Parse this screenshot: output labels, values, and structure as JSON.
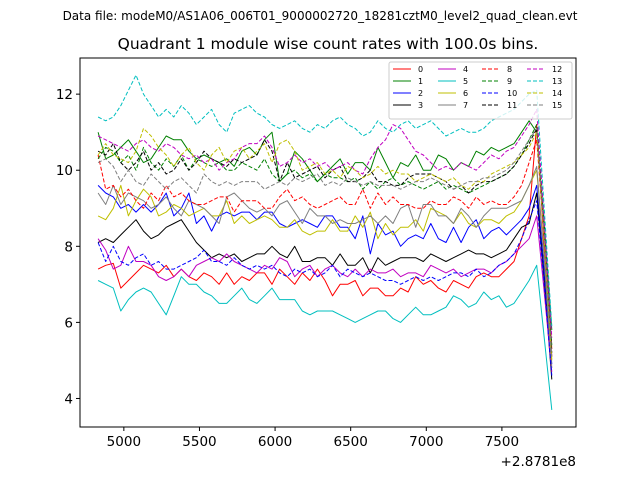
{
  "figure": {
    "suptitle": "Data file: modeM0/AS1A06_006T01_9000002720_18281cztM0_level2_quad_clean.evt",
    "title": "Quadrant 1 module wise count rates with 100.0s bins."
  },
  "chart_data": {
    "type": "line",
    "title": "Quadrant 1 module wise count rates with 100.0s bins.",
    "xlabel": "",
    "ylabel": "",
    "x_offset_label": "+2.8781e8",
    "xlim": [
      4710,
      7990
    ],
    "ylim": [
      3.25,
      12.95
    ],
    "xticks": [
      5000,
      5500,
      6000,
      6500,
      7000,
      7500
    ],
    "yticks": [
      4,
      6,
      8,
      10,
      12
    ],
    "grid": false,
    "legend": {
      "placement": "top-right",
      "columns": 4
    },
    "x": [
      4830,
      4880,
      4930,
      4980,
      5030,
      5080,
      5130,
      5180,
      5230,
      5280,
      5330,
      5380,
      5430,
      5480,
      5530,
      5580,
      5630,
      5680,
      5730,
      5780,
      5830,
      5880,
      5930,
      5980,
      6030,
      6080,
      6130,
      6180,
      6230,
      6280,
      6330,
      6380,
      6430,
      6480,
      6530,
      6580,
      6630,
      6680,
      6730,
      6780,
      6830,
      6880,
      6930,
      6980,
      7030,
      7080,
      7130,
      7180,
      7230,
      7280,
      7330,
      7380,
      7430,
      7480,
      7530,
      7580,
      7630,
      7680,
      7730,
      7780,
      7830
    ],
    "series": [
      {
        "name": "0",
        "color": "#ff0000",
        "dash": false,
        "values": [
          7.4,
          7.5,
          7.55,
          6.9,
          7.1,
          7.3,
          7.5,
          7.4,
          7.3,
          7.5,
          7.2,
          7.4,
          7.2,
          7.1,
          7.3,
          7.2,
          7.0,
          7.3,
          7.0,
          7.2,
          7.1,
          7.3,
          7.3,
          7.0,
          7.4,
          7.2,
          7.0,
          7.3,
          7.1,
          7.4,
          7.1,
          6.7,
          7.0,
          7.0,
          7.1,
          6.7,
          6.9,
          6.9,
          6.7,
          6.7,
          6.9,
          6.8,
          7.2,
          7.0,
          7.1,
          6.9,
          6.8,
          7.1,
          7.0,
          6.9,
          7.2,
          7.3,
          7.2,
          7.2,
          7.4,
          7.6,
          8.2,
          8.8,
          11.2,
          8.0,
          5.1
        ]
      },
      {
        "name": "1",
        "color": "#008000",
        "dash": false,
        "values": [
          11.0,
          10.3,
          10.4,
          10.6,
          10.8,
          10.5,
          10.2,
          10.3,
          10.6,
          10.9,
          10.8,
          10.8,
          10.5,
          10.3,
          10.4,
          10.3,
          10.2,
          10.3,
          10.1,
          10.5,
          10.6,
          10.4,
          10.8,
          11.0,
          9.7,
          9.9,
          10.5,
          10.3,
          10.0,
          9.7,
          9.9,
          10.1,
          10.3,
          9.9,
          10.2,
          10.2,
          10.0,
          10.6,
          10.2,
          9.8,
          10.2,
          10.1,
          10.4,
          10.0,
          10.0,
          10.4,
          10.3,
          10.0,
          10.2,
          10.1,
          10.5,
          10.4,
          10.6,
          10.5,
          10.6,
          10.7,
          11.0,
          11.3,
          11.0,
          8.6,
          5.8
        ]
      },
      {
        "name": "2",
        "color": "#0000ff",
        "dash": false,
        "values": [
          9.6,
          9.4,
          9.3,
          9.0,
          9.1,
          8.9,
          9.1,
          8.9,
          9.1,
          9.4,
          8.8,
          9.0,
          9.4,
          8.6,
          8.8,
          8.4,
          8.8,
          8.9,
          8.8,
          8.9,
          8.9,
          8.7,
          8.9,
          8.9,
          8.6,
          8.5,
          8.6,
          8.7,
          8.6,
          8.5,
          8.8,
          8.8,
          8.5,
          8.5,
          8.2,
          8.8,
          7.8,
          8.6,
          8.3,
          8.4,
          8.0,
          8.2,
          8.3,
          8.2,
          8.6,
          8.2,
          8.1,
          8.5,
          8.1,
          8.5,
          8.7,
          8.2,
          8.4,
          8.5,
          8.3,
          8.5,
          8.7,
          9.0,
          9.6,
          7.4,
          4.9
        ]
      },
      {
        "name": "3",
        "color": "#000000",
        "dash": false,
        "values": [
          8.1,
          8.2,
          8.1,
          8.3,
          8.5,
          8.7,
          8.4,
          8.2,
          8.3,
          8.5,
          8.6,
          8.7,
          8.4,
          8.1,
          7.9,
          7.7,
          7.8,
          7.7,
          7.8,
          7.6,
          7.7,
          7.8,
          7.8,
          8.0,
          7.8,
          7.7,
          8.0,
          7.6,
          7.6,
          7.7,
          7.7,
          7.5,
          7.8,
          7.5,
          7.5,
          7.7,
          7.3,
          7.7,
          7.5,
          7.6,
          7.7,
          7.7,
          7.7,
          7.6,
          7.8,
          7.7,
          7.6,
          7.7,
          7.8,
          7.9,
          7.8,
          7.8,
          7.7,
          7.8,
          7.9,
          8.2,
          8.5,
          8.6,
          9.4,
          7.1,
          4.5
        ]
      },
      {
        "name": "4",
        "color": "#c000c0",
        "dash": false,
        "values": [
          8.2,
          7.9,
          7.4,
          7.5,
          8.0,
          7.6,
          7.6,
          7.5,
          7.2,
          7.1,
          7.2,
          7.4,
          7.2,
          7.5,
          7.6,
          7.7,
          7.6,
          7.8,
          7.6,
          7.5,
          7.4,
          7.3,
          7.5,
          7.4,
          7.7,
          7.6,
          7.2,
          7.4,
          7.5,
          7.2,
          7.4,
          7.5,
          7.3,
          7.2,
          7.4,
          7.2,
          7.4,
          7.3,
          7.3,
          7.4,
          7.2,
          7.3,
          7.3,
          7.2,
          7.5,
          7.4,
          7.3,
          7.4,
          7.2,
          7.3,
          7.4,
          7.4,
          7.3,
          7.5,
          7.6,
          7.8,
          8.0,
          8.2,
          8.8,
          6.8,
          4.7
        ]
      },
      {
        "name": "5",
        "color": "#00bfbf",
        "dash": false,
        "values": [
          7.1,
          7.0,
          6.9,
          6.3,
          6.6,
          6.8,
          6.9,
          6.8,
          6.5,
          6.2,
          6.7,
          7.2,
          7.0,
          7.0,
          6.8,
          6.7,
          6.5,
          6.5,
          6.7,
          6.9,
          6.6,
          6.5,
          6.7,
          6.9,
          6.6,
          6.6,
          6.6,
          6.3,
          6.2,
          6.3,
          6.3,
          6.3,
          6.2,
          6.1,
          6.0,
          6.1,
          6.2,
          6.3,
          6.3,
          6.1,
          6.0,
          6.2,
          6.4,
          6.2,
          6.2,
          6.3,
          6.4,
          6.7,
          6.6,
          6.4,
          6.5,
          6.8,
          6.6,
          6.7,
          6.4,
          6.5,
          6.8,
          7.1,
          7.5,
          5.6,
          3.7
        ]
      },
      {
        "name": "6",
        "color": "#bfbf00",
        "dash": false,
        "values": [
          8.8,
          8.7,
          9.0,
          9.6,
          8.8,
          9.2,
          9.5,
          9.3,
          8.8,
          8.9,
          9.1,
          9.0,
          8.8,
          8.9,
          9.0,
          8.8,
          8.8,
          9.2,
          8.6,
          8.8,
          8.6,
          8.7,
          8.8,
          8.7,
          8.5,
          8.5,
          8.7,
          8.4,
          8.3,
          8.4,
          8.4,
          8.7,
          8.4,
          8.4,
          8.8,
          8.5,
          8.9,
          8.2,
          8.6,
          8.3,
          8.5,
          8.5,
          8.7,
          8.4,
          9.0,
          8.9,
          8.8,
          8.6,
          8.9,
          8.6,
          8.5,
          8.7,
          8.7,
          8.6,
          8.8,
          8.9,
          9.2,
          9.6,
          10.0,
          7.7,
          5.0
        ]
      },
      {
        "name": "7",
        "color": "#7f7f7f",
        "dash": false,
        "values": [
          9.4,
          9.1,
          9.6,
          9.1,
          9.4,
          9.3,
          9.2,
          9.0,
          9.1,
          9.3,
          9.0,
          8.8,
          9.2,
          9.1,
          9.0,
          8.8,
          8.6,
          9.3,
          9.4,
          9.2,
          9.0,
          8.9,
          9.0,
          8.8,
          9.1,
          9.2,
          8.9,
          8.6,
          9.0,
          8.8,
          8.8,
          8.6,
          8.7,
          8.6,
          8.6,
          8.7,
          8.8,
          8.6,
          8.8,
          8.6,
          9.0,
          9.1,
          8.5,
          9.1,
          9.1,
          8.8,
          8.8,
          8.6,
          9.0,
          8.8,
          8.5,
          8.8,
          9.0,
          9.0,
          9.0,
          9.1,
          9.2,
          9.6,
          10.1,
          7.7,
          4.8
        ]
      },
      {
        "name": "8",
        "color": "#ff0000",
        "dash": true,
        "values": [
          10.4,
          9.5,
          9.6,
          9.3,
          9.5,
          9.2,
          9.0,
          9.4,
          9.2,
          9.6,
          9.3,
          9.4,
          9.2,
          9.1,
          9.1,
          9.2,
          9.3,
          9.3,
          8.9,
          9.2,
          9.2,
          9.2,
          9.0,
          9.0,
          9.3,
          9.5,
          9.2,
          9.3,
          9.1,
          9.0,
          9.1,
          9.2,
          9.3,
          9.1,
          9.1,
          9.5,
          9.0,
          9.4,
          9.1,
          9.3,
          9.1,
          9.1,
          9.0,
          9.0,
          9.2,
          9.1,
          9.1,
          9.3,
          9.2,
          9.0,
          9.3,
          9.1,
          9.2,
          9.1,
          9.1,
          9.3,
          9.6,
          10.2,
          10.8,
          8.2,
          5.3
        ]
      },
      {
        "name": "9",
        "color": "#008000",
        "dash": true,
        "values": [
          10.3,
          10.6,
          10.5,
          10.2,
          10.4,
          10.0,
          10.6,
          10.2,
          10.0,
          10.3,
          10.1,
          10.4,
          10.0,
          10.3,
          10.2,
          10.1,
          10.2,
          10.0,
          10.0,
          10.2,
          10.1,
          10.0,
          10.3,
          9.9,
          9.7,
          9.9,
          10.0,
          9.8,
          9.9,
          9.7,
          9.9,
          9.8,
          9.8,
          9.7,
          9.8,
          9.5,
          9.7,
          9.5,
          9.7,
          9.8,
          9.6,
          9.7,
          9.6,
          9.5,
          9.6,
          9.7,
          9.5,
          9.6,
          9.5,
          9.4,
          9.5,
          9.6,
          9.7,
          9.8,
          9.9,
          10.1,
          10.4,
          10.8,
          11.2,
          8.4,
          5.4
        ]
      },
      {
        "name": "10",
        "color": "#0000ff",
        "dash": true,
        "values": [
          8.1,
          7.6,
          8.0,
          7.6,
          7.5,
          7.7,
          7.8,
          7.5,
          7.6,
          7.4,
          7.4,
          7.5,
          7.6,
          7.7,
          7.9,
          7.6,
          7.6,
          7.5,
          7.7,
          7.5,
          7.4,
          7.5,
          7.4,
          7.5,
          7.3,
          7.2,
          7.4,
          7.3,
          7.4,
          7.2,
          7.3,
          7.5,
          7.2,
          7.4,
          7.3,
          7.2,
          7.3,
          7.2,
          7.1,
          7.1,
          7.0,
          7.1,
          7.2,
          7.1,
          7.2,
          7.1,
          7.2,
          7.3,
          7.3,
          7.2,
          7.4,
          7.2,
          7.3,
          7.5,
          7.6,
          7.8,
          8.2,
          8.7,
          9.2,
          7.0,
          4.6
        ]
      },
      {
        "name": "11",
        "color": "#000000",
        "dash": true,
        "values": [
          10.5,
          10.4,
          10.7,
          10.2,
          10.0,
          10.2,
          10.5,
          10.0,
          10.2,
          9.9,
          10.0,
          10.3,
          10.0,
          10.2,
          10.5,
          10.3,
          10.2,
          10.1,
          10.3,
          10.2,
          10.3,
          10.4,
          10.8,
          10.5,
          9.7,
          10.2,
          9.8,
          9.9,
          10.0,
          10.1,
          9.8,
          10.0,
          10.1,
          9.7,
          9.7,
          9.8,
          10.0,
          9.7,
          9.7,
          9.6,
          9.6,
          9.8,
          9.9,
          9.9,
          9.9,
          9.8,
          9.7,
          9.5,
          9.6,
          9.4,
          9.6,
          9.7,
          9.7,
          9.8,
          9.9,
          10.1,
          10.4,
          10.7,
          11.1,
          8.3,
          5.2
        ]
      },
      {
        "name": "12",
        "color": "#c000c0",
        "dash": true,
        "values": [
          10.9,
          10.8,
          10.7,
          10.6,
          10.5,
          10.7,
          10.8,
          10.6,
          10.5,
          10.7,
          10.6,
          10.4,
          10.3,
          10.4,
          10.2,
          10.3,
          10.0,
          10.2,
          10.3,
          10.6,
          10.7,
          10.7,
          10.9,
          10.6,
          10.1,
          10.2,
          10.4,
          10.2,
          10.3,
          10.1,
          10.2,
          10.0,
          10.1,
          10.2,
          10.0,
          9.9,
          10.3,
          10.6,
          10.8,
          11.2,
          11.1,
          10.8,
          10.5,
          10.4,
          10.2,
          10.0,
          10.1,
          10.0,
          10.2,
          10.1,
          10.0,
          10.2,
          10.4,
          10.3,
          10.5,
          10.6,
          10.9,
          11.2,
          11.6,
          8.7,
          5.6
        ]
      },
      {
        "name": "13",
        "color": "#00bfbf",
        "dash": true,
        "values": [
          11.4,
          11.3,
          11.4,
          11.7,
          12.1,
          12.5,
          12.0,
          11.7,
          11.4,
          11.6,
          11.4,
          11.7,
          11.5,
          11.2,
          11.4,
          11.6,
          11.2,
          11.0,
          11.5,
          11.6,
          11.7,
          11.5,
          11.4,
          11.2,
          11.1,
          11.2,
          11.3,
          11.1,
          11.0,
          11.2,
          11.1,
          11.3,
          11.4,
          11.2,
          11.1,
          10.9,
          11.0,
          11.3,
          11.1,
          11.0,
          11.2,
          11.3,
          11.1,
          11.2,
          11.3,
          11.1,
          10.9,
          11.0,
          11.1,
          11.0,
          11.0,
          11.1,
          11.3,
          11.4,
          11.5,
          11.6,
          11.8,
          12.0,
          12.1,
          9.0,
          5.9
        ]
      },
      {
        "name": "14",
        "color": "#bfbf00",
        "dash": true,
        "values": [
          10.4,
          10.7,
          10.4,
          10.3,
          10.2,
          10.5,
          11.1,
          10.9,
          10.6,
          10.4,
          10.1,
          10.4,
          10.6,
          10.2,
          10.0,
          10.4,
          10.6,
          10.2,
          10.5,
          10.6,
          10.3,
          10.5,
          10.7,
          10.2,
          10.7,
          10.8,
          10.5,
          10.0,
          10.1,
          10.2,
          9.9,
          10.0,
          9.8,
          10.1,
          10.0,
          9.8,
          9.9,
          10.1,
          9.9,
          10.0,
          9.9,
          9.9,
          9.7,
          9.8,
          9.9,
          9.8,
          9.7,
          9.8,
          9.6,
          9.5,
          9.7,
          9.7,
          9.9,
          10.0,
          10.1,
          10.2,
          10.4,
          10.6,
          11.0,
          8.2,
          5.0
        ]
      },
      {
        "name": "15",
        "color": "#7f7f7f",
        "dash": true,
        "values": [
          10.2,
          10.3,
          10.1,
          9.7,
          10.0,
          9.7,
          9.6,
          9.9,
          9.7,
          9.5,
          9.7,
          9.8,
          9.6,
          9.4,
          9.9,
          9.7,
          9.6,
          9.7,
          9.6,
          9.7,
          9.7,
          9.7,
          9.5,
          9.6,
          9.7,
          9.6,
          9.8,
          9.7,
          9.8,
          9.9,
          9.6,
          9.7,
          9.6,
          9.8,
          9.7,
          9.6,
          9.7,
          9.6,
          9.6,
          9.6,
          9.5,
          9.6,
          9.7,
          9.7,
          9.8,
          9.7,
          9.6,
          9.5,
          9.6,
          9.7,
          9.7,
          9.8,
          9.8,
          9.9,
          10.0,
          10.2,
          10.5,
          10.8,
          11.1,
          8.3,
          5.1
        ]
      }
    ]
  }
}
